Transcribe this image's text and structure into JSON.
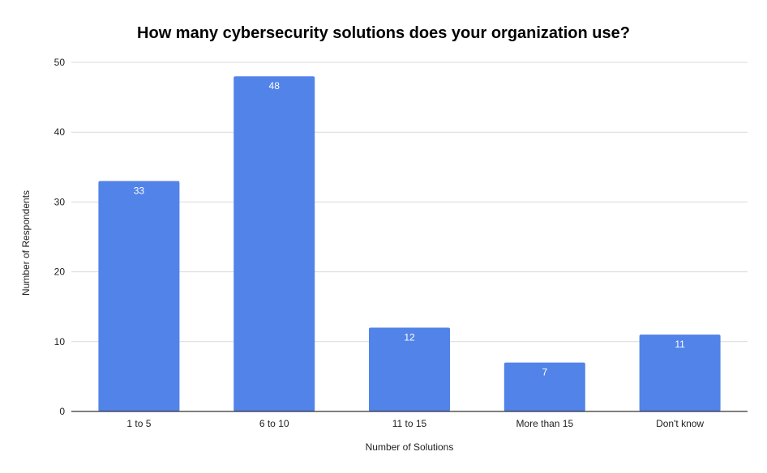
{
  "chart_data": {
    "type": "bar",
    "title": "How many cybersecurity solutions does your organization use?",
    "xlabel": "Number of Solutions",
    "ylabel": "Number of Respondents",
    "categories": [
      "1 to 5",
      "6 to 10",
      "11 to 15",
      "More than 15",
      "Don't know"
    ],
    "values": [
      33,
      48,
      12,
      7,
      11
    ],
    "ylim": [
      0,
      50
    ],
    "yticks": [
      0,
      10,
      20,
      30,
      40,
      50
    ],
    "grid": true,
    "legend": "none",
    "colors": {
      "bar": "#5283e8",
      "grid": "#d9d9d9",
      "axis": "#333333",
      "data_label": "#ffffff"
    }
  }
}
